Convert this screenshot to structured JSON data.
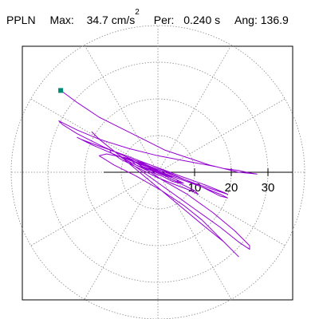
{
  "header": {
    "station": "PPLN",
    "max_label": "Max:",
    "max_value": "34.7",
    "max_unit": "cm/s",
    "max_unit_exp": "2",
    "per_label": "Per:",
    "per_value": "0.240 s",
    "ang_label": "Ang:",
    "ang_value": "136.9"
  },
  "colors": {
    "trace": "#9400d3",
    "marker": "#008b74",
    "grid": "#888888",
    "axis": "#000000",
    "frame": "#000000"
  },
  "chart_data": {
    "type": "scatter",
    "subtype": "polar-particle-motion",
    "title": "",
    "xlabel": "",
    "ylabel": "",
    "radial_ticks": [
      10,
      20,
      30
    ],
    "radial_tick_labels": [
      "10",
      "20",
      "30"
    ],
    "radial_ring_values": [
      10,
      20,
      30,
      40
    ],
    "angular_spokes_deg": [
      0,
      30,
      60,
      90,
      120,
      150,
      180,
      210,
      240,
      270,
      300,
      330
    ],
    "max_amplitude": 34.7,
    "angle_deg": 136.9,
    "x_range": [
      -40,
      40
    ],
    "y_range": [
      -40,
      40
    ],
    "start_point": [
      -26.5,
      22.3
    ],
    "series": [
      {
        "values_xy": [
          [
            -26.5,
            22.3
          ],
          [
            -22,
            19
          ],
          [
            -16,
            15
          ],
          [
            -10,
            12
          ],
          [
            -4,
            9
          ],
          [
            2,
            6
          ],
          [
            8,
            4
          ],
          [
            14,
            2
          ],
          [
            18,
            1
          ],
          [
            22,
            0.5
          ],
          [
            25,
            -0.2
          ],
          [
            27,
            -0.5
          ],
          [
            26,
            -0.4
          ],
          [
            22,
            0
          ],
          [
            16,
            1.5
          ],
          [
            8,
            3
          ],
          [
            0,
            4.5
          ],
          [
            -8,
            6.5
          ],
          [
            -16,
            9
          ],
          [
            -22,
            11.5
          ],
          [
            -26,
            13.5
          ],
          [
            -27,
            14
          ],
          [
            -26,
            13
          ],
          [
            -22,
            10.5
          ],
          [
            -15,
            7
          ],
          [
            -7,
            3.5
          ],
          [
            2,
            0
          ],
          [
            10,
            -3
          ],
          [
            16,
            -5
          ],
          [
            19,
            -6
          ],
          [
            18,
            -5.5
          ],
          [
            13,
            -3.5
          ],
          [
            6,
            -1
          ],
          [
            -2,
            2
          ],
          [
            -10,
            5
          ],
          [
            -17,
            7.5
          ],
          [
            -21,
            9
          ],
          [
            -22,
            9.5
          ],
          [
            -18,
            7.5
          ],
          [
            -11,
            4.5
          ],
          [
            -3,
            1.5
          ],
          [
            5,
            -1.5
          ],
          [
            12,
            -4
          ],
          [
            17,
            -6
          ],
          [
            19,
            -7
          ],
          [
            17,
            -6.5
          ],
          [
            12,
            -4
          ],
          [
            5,
            -1
          ],
          [
            -2,
            2
          ],
          [
            -9,
            4
          ],
          [
            -14,
            5
          ],
          [
            -16,
            4.5
          ],
          [
            -12,
            2
          ],
          [
            -6,
            -1
          ],
          [
            1,
            -5
          ],
          [
            7,
            -9
          ],
          [
            12,
            -13
          ],
          [
            16,
            -17
          ],
          [
            19,
            -20
          ],
          [
            21,
            -22
          ],
          [
            22,
            -23
          ],
          [
            21,
            -22
          ],
          [
            18,
            -19
          ],
          [
            13,
            -15
          ],
          [
            7,
            -10
          ],
          [
            1,
            -5
          ],
          [
            -5,
            0
          ],
          [
            -11,
            5
          ],
          [
            -16,
            9
          ],
          [
            -18,
            11
          ],
          [
            -16,
            9
          ],
          [
            -11,
            5
          ],
          [
            -4,
            0
          ],
          [
            3,
            -5
          ],
          [
            10,
            -10
          ],
          [
            17,
            -15
          ],
          [
            22,
            -19
          ],
          [
            25,
            -21
          ],
          [
            25,
            -20
          ],
          [
            21,
            -16
          ],
          [
            15,
            -11
          ],
          [
            8,
            -6
          ],
          [
            1,
            -2
          ],
          [
            -5,
            2
          ],
          [
            -10,
            5
          ],
          [
            -13,
            6
          ],
          [
            -13,
            5.5
          ],
          [
            -10,
            3.5
          ],
          [
            -5,
            1
          ],
          [
            0,
            -1.5
          ],
          [
            5,
            -3.5
          ],
          [
            9,
            -5
          ],
          [
            11,
            -6
          ],
          [
            10,
            -5
          ],
          [
            6,
            -3
          ],
          [
            1,
            -0.5
          ],
          [
            -4,
            2
          ],
          [
            -8,
            3.5
          ],
          [
            -10,
            4
          ],
          [
            -9,
            3.5
          ],
          [
            -6,
            2
          ],
          [
            -2,
            0.5
          ],
          [
            2,
            -1
          ],
          [
            5,
            -2.5
          ],
          [
            7,
            -3
          ],
          [
            6,
            -2.5
          ],
          [
            3,
            -1
          ],
          [
            -1,
            1
          ],
          [
            -5,
            2.5
          ],
          [
            -7,
            3
          ],
          [
            -6,
            2
          ],
          [
            -3,
            0.5
          ],
          [
            1,
            -1
          ],
          [
            4,
            -2.5
          ],
          [
            6,
            -3
          ],
          [
            5,
            -2
          ],
          [
            2,
            -0.5
          ],
          [
            -2,
            1
          ],
          [
            -4,
            2
          ],
          [
            -5,
            2
          ],
          [
            -3,
            1
          ],
          [
            0,
            0
          ],
          [
            3,
            -1
          ],
          [
            5,
            -2
          ],
          [
            4,
            -1.5
          ],
          [
            1,
            -0.5
          ],
          [
            -2,
            0.8
          ],
          [
            -4,
            1.5
          ],
          [
            -3,
            1
          ],
          [
            -1,
            0.3
          ],
          [
            2,
            -0.6
          ],
          [
            4,
            -1.2
          ],
          [
            3,
            -1
          ],
          [
            0,
            0
          ],
          [
            -2,
            0.6
          ],
          [
            -3,
            1
          ],
          [
            -2,
            0.5
          ],
          [
            0,
            0
          ],
          [
            2,
            -0.5
          ],
          [
            3,
            -0.8
          ],
          [
            1,
            -0.3
          ],
          [
            -1,
            0.4
          ],
          [
            -2,
            0.5
          ],
          [
            0,
            0
          ]
        ]
      }
    ]
  }
}
